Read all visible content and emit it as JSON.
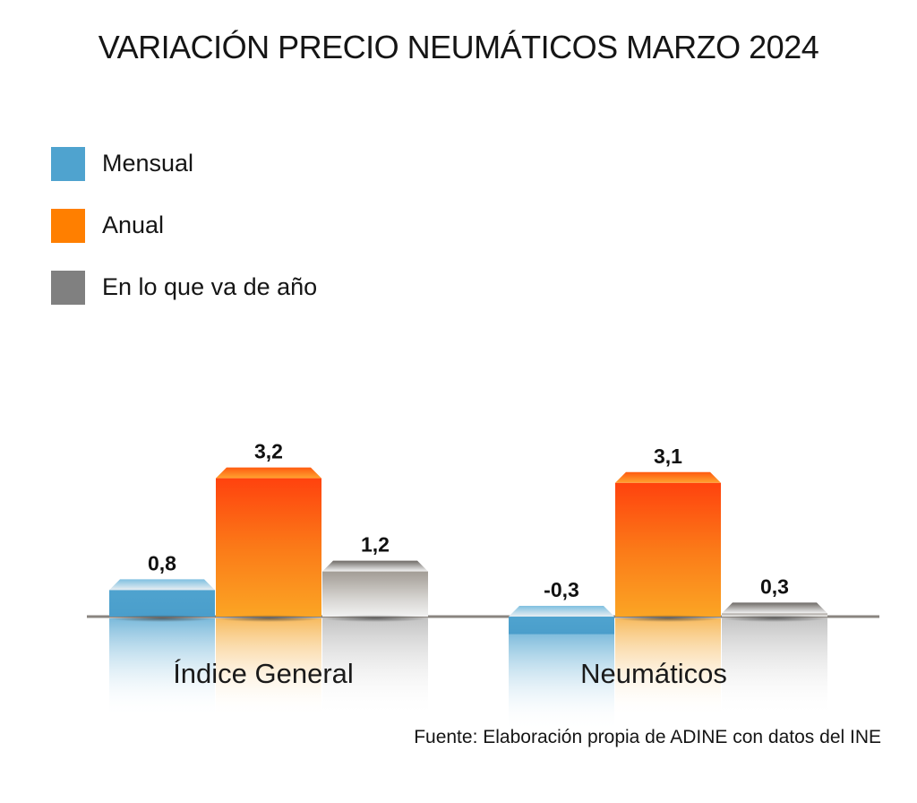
{
  "title": "VARIACIÓN PRECIO NEUMÁTICOS MARZO 2024",
  "legend": [
    {
      "label": "Mensual",
      "color": "#4fa3cf"
    },
    {
      "label": "Anual",
      "color": "#ff7f00"
    },
    {
      "label": "En lo que va de año",
      "color": "#808080"
    }
  ],
  "source": "Fuente: Elaboración propia de ADINE con datos del INE",
  "chart_data": {
    "type": "bar",
    "title": "VARIACIÓN PRECIO NEUMÁTICOS MARZO 2024",
    "categories": [
      "Índice General",
      "Neumáticos"
    ],
    "series": [
      {
        "name": "Mensual",
        "values": [
          0.8,
          -0.3
        ],
        "labels": [
          "0,8",
          "-0,3"
        ],
        "color": "#4fa3cf"
      },
      {
        "name": "Anual",
        "values": [
          3.2,
          3.1
        ],
        "labels": [
          "3,2",
          "3,1"
        ],
        "color": "#ff7f00"
      },
      {
        "name": "En lo que va de año",
        "values": [
          1.2,
          0.3
        ],
        "labels": [
          "1,2",
          "0,3"
        ],
        "color": "#808080"
      }
    ],
    "xlabel": "",
    "ylabel": "",
    "ylim": [
      -0.5,
      3.5
    ],
    "grid": false,
    "legend_position": "top-left"
  }
}
